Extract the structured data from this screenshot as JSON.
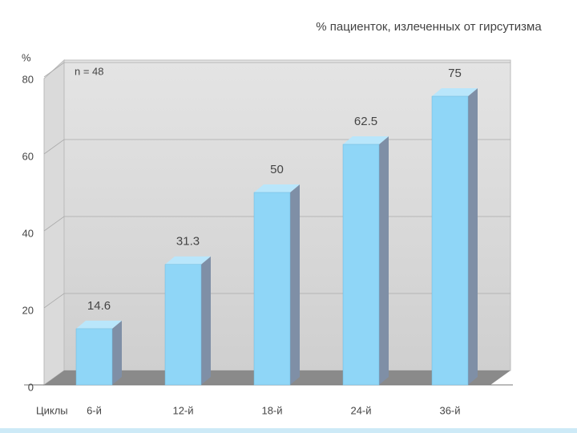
{
  "chart_data": {
    "type": "bar",
    "title": "% пациенток, излеченных от гирсутизма",
    "y_label": "%",
    "x_label": "Циклы",
    "annotation": "n = 48",
    "categories": [
      "6-й",
      "12-й",
      "18-й",
      "24-й",
      "36-й"
    ],
    "values": [
      14.6,
      31.3,
      50,
      62.5,
      75
    ],
    "color": "#8fd6f7",
    "ylim": [
      0,
      80
    ],
    "yticks": [
      0,
      20,
      40,
      60,
      80
    ],
    "grid": true
  }
}
